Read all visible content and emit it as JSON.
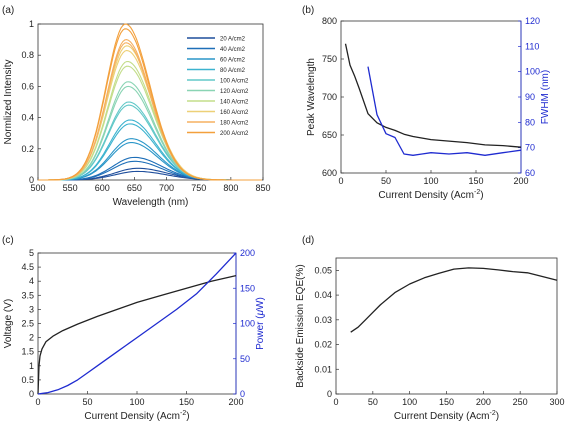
{
  "chart_data": [
    {
      "panel": "(a)",
      "type": "line",
      "xlabel": "Wavelength (nm)",
      "ylabel": "Normlized Intensity",
      "xlim": [
        500,
        850
      ],
      "ylim": [
        0,
        1.0
      ],
      "xticks": [
        500,
        550,
        600,
        650,
        700,
        750,
        800,
        850
      ],
      "yticks": [
        0,
        0.2,
        0.4,
        0.6,
        0.8,
        1
      ],
      "legend_position": "right",
      "series": [
        {
          "name": "20 A/cm2",
          "amp_min": 0.055,
          "amp_max": 0.075,
          "peak": 655,
          "sigma": 40,
          "color": "#1f4e9c"
        },
        {
          "name": "40 A/cm2",
          "amp_min": 0.12,
          "amp_max": 0.145,
          "peak": 650,
          "sigma": 38,
          "color": "#1e6fb8"
        },
        {
          "name": "60 A/cm2",
          "amp_min": 0.24,
          "amp_max": 0.265,
          "peak": 645,
          "sigma": 37,
          "color": "#2a96c8"
        },
        {
          "name": "80 A/cm2",
          "amp_min": 0.36,
          "amp_max": 0.385,
          "peak": 643,
          "sigma": 36,
          "color": "#3cb3cf"
        },
        {
          "name": "100 A/cm2",
          "amp_min": 0.48,
          "amp_max": 0.5,
          "peak": 641,
          "sigma": 36,
          "color": "#62c8c8"
        },
        {
          "name": "120 A/cm2",
          "amp_min": 0.6,
          "amp_max": 0.63,
          "peak": 640,
          "sigma": 35,
          "color": "#8ad4b4"
        },
        {
          "name": "140 A/cm2",
          "amp_min": 0.73,
          "amp_max": 0.76,
          "peak": 639,
          "sigma": 35,
          "color": "#c3dd8a"
        },
        {
          "name": "160 A/cm2",
          "amp_min": 0.83,
          "amp_max": 0.86,
          "peak": 638,
          "sigma": 35,
          "color": "#edd077"
        },
        {
          "name": "180 A/cm2",
          "amp_min": 0.88,
          "amp_max": 0.9,
          "peak": 637,
          "sigma": 34,
          "color": "#f5b060"
        },
        {
          "name": "200 A/cm2",
          "amp_min": 0.97,
          "amp_max": 1.0,
          "peak": 636,
          "sigma": 34,
          "color": "#f3a03c"
        }
      ]
    },
    {
      "panel": "(b)",
      "type": "line",
      "xlabel": "Current Density (Acm",
      "xlabel_sup": "-2",
      "xlabel_end": ")",
      "ylabel": "Peak Wavelength",
      "ylabel_right": "FWHM (nm)",
      "xlim": [
        0,
        200
      ],
      "ylim": [
        600,
        800
      ],
      "ylim_right": [
        60,
        120
      ],
      "xticks": [
        0,
        50,
        100,
        150,
        200
      ],
      "yticks": [
        600,
        650,
        700,
        750,
        800
      ],
      "yticks_right": [
        60,
        70,
        80,
        90,
        100,
        110,
        120
      ],
      "series": [
        {
          "name": "",
          "axis": "left",
          "color": "#222222",
          "x": [
            5,
            10,
            15,
            20,
            30,
            40,
            50,
            60,
            70,
            80,
            100,
            120,
            140,
            160,
            180,
            200
          ],
          "y": [
            770,
            742,
            728,
            712,
            678,
            666,
            660,
            656,
            651,
            648,
            644,
            642,
            640,
            637,
            636,
            634
          ]
        },
        {
          "name": "",
          "axis": "right",
          "color": "#1f2bd0",
          "x": [
            30,
            40,
            50,
            60,
            70,
            80,
            90,
            100,
            120,
            140,
            160,
            180,
            200
          ],
          "y": [
            102,
            83,
            75.5,
            74,
            67.5,
            67,
            67.5,
            68,
            67.5,
            68,
            67,
            68,
            69
          ]
        }
      ]
    },
    {
      "panel": "(c)",
      "type": "line",
      "xlabel": "Current Density (Acm",
      "xlabel_sup": "-2",
      "xlabel_end": ")",
      "ylabel": "Voltage (V)",
      "ylabel_right_pre": "Power (",
      "ylabel_right_mu": "μ",
      "ylabel_right_post": "W)",
      "xlim": [
        0,
        200
      ],
      "ylim": [
        0,
        5
      ],
      "ylim_right": [
        0,
        200
      ],
      "xticks": [
        0,
        50,
        100,
        150,
        200
      ],
      "yticks": [
        0,
        0.5,
        1,
        1.5,
        2,
        2.5,
        3,
        3.5,
        4,
        4.5,
        5
      ],
      "yticks_right": [
        0,
        50,
        100,
        150,
        200
      ],
      "series": [
        {
          "name": "",
          "axis": "left",
          "color": "#222222",
          "x": [
            0,
            0.5,
            1,
            2,
            4,
            8,
            15,
            25,
            40,
            60,
            80,
            100,
            125,
            150,
            175,
            200
          ],
          "y": [
            0,
            0.5,
            1.0,
            1.35,
            1.6,
            1.85,
            2.05,
            2.25,
            2.48,
            2.75,
            3.0,
            3.25,
            3.5,
            3.75,
            4.0,
            4.2
          ]
        },
        {
          "name": "",
          "axis": "right",
          "color": "#1f2bd0",
          "x": [
            0,
            5,
            10,
            20,
            30,
            40,
            50,
            60,
            80,
            100,
            120,
            140,
            160,
            180,
            200
          ],
          "y": [
            0,
            1,
            2,
            6,
            12,
            20,
            30,
            40,
            60,
            80,
            100,
            120,
            142,
            170,
            200
          ]
        }
      ]
    },
    {
      "panel": "(d)",
      "type": "line",
      "xlabel": "Current Density (Acm",
      "xlabel_sup": "-2",
      "xlabel_end": ")",
      "ylabel": "Backside Emission EQE(%)",
      "xlim": [
        0,
        300
      ],
      "ylim": [
        0,
        0.055
      ],
      "xticks": [
        0,
        50,
        100,
        150,
        200,
        250,
        300
      ],
      "yticks": [
        0,
        0.01,
        0.02,
        0.03,
        0.04,
        0.05
      ],
      "series": [
        {
          "name": "",
          "axis": "left",
          "color": "#222222",
          "x": [
            20,
            30,
            40,
            50,
            60,
            80,
            100,
            120,
            140,
            160,
            180,
            200,
            220,
            240,
            260,
            280,
            300
          ],
          "y": [
            0.025,
            0.027,
            0.03,
            0.033,
            0.036,
            0.041,
            0.0445,
            0.047,
            0.0488,
            0.0505,
            0.051,
            0.0508,
            0.0502,
            0.0495,
            0.049,
            0.0475,
            0.046
          ]
        }
      ]
    }
  ]
}
